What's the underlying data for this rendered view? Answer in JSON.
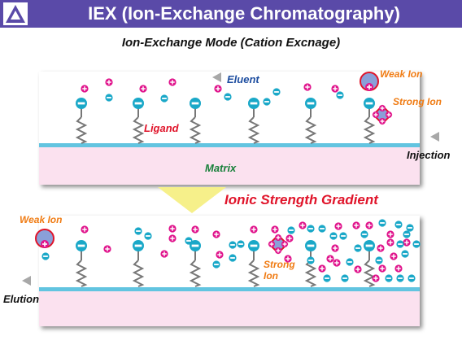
{
  "header": {
    "title": "IEX (Ion-Exchange Chromatography)",
    "background_color": "#5a4aa8",
    "logo_icon": "triangle-logo-icon"
  },
  "diagram": {
    "subtitle": "Ion-Exchange Mode (Cation Excnage)",
    "eluent_label": "Eluent",
    "ligand_label": "Ligand",
    "matrix_label": "Matrix",
    "injection_label": "Injection",
    "elution_label": "Elution",
    "gradient_label": "Ionic Strength Gradient",
    "weak_ion_label": "Weak Ion",
    "strong_ion_label": "Strong Ion",
    "strong_ion_label_bottom": [
      "Strong",
      "Ion"
    ],
    "colors": {
      "matrix_band": "#fbe1ef",
      "matrix_line": "#62c4e0",
      "ligand_ion": "#1aa8c8",
      "counter_ion": "#e0148c",
      "weak_ion": "#8aa0d8",
      "weak_ion_outline": "#e0142a",
      "gradient_arrow": "#f6f08a",
      "arrow_gray": "#a8a8a8"
    }
  }
}
